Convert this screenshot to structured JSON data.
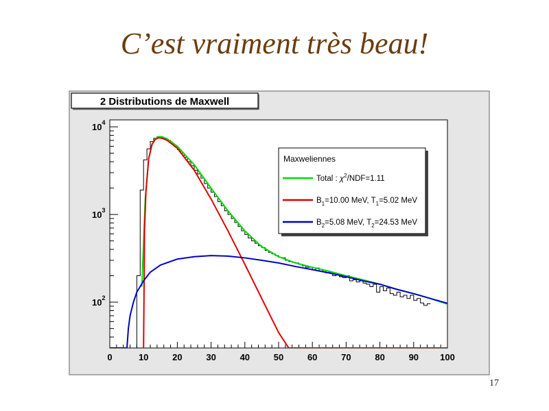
{
  "slide": {
    "title": "C’est vraiment très beau!",
    "page_number": "17"
  },
  "chart_data": {
    "type": "line",
    "title": "2 Distributions de Maxwell",
    "xlim": [
      0,
      100
    ],
    "ylim": [
      30,
      12000
    ],
    "yscale": "log",
    "x_ticks": [
      0,
      10,
      20,
      30,
      40,
      50,
      60,
      70,
      80,
      90,
      100
    ],
    "x_tick_labels": [
      "0",
      "10",
      "20",
      "30",
      "40",
      "50",
      "60",
      "70",
      "80",
      "90",
      "100"
    ],
    "y_ticks": [
      {
        "value": 100,
        "base": "10",
        "exp": "2"
      },
      {
        "value": 1000,
        "base": "10",
        "exp": "3"
      },
      {
        "value": 10000,
        "base": "10",
        "exp": "4"
      }
    ],
    "grid": false,
    "legend": {
      "title": "Maxweliennes",
      "placement": "top-right",
      "entries": [
        {
          "series": "total",
          "sym": "χ",
          "sup": "2",
          "post": "/NDF=1.11",
          "pre": "Total : "
        },
        {
          "series": "b1",
          "pre": "B",
          "sub1": "1",
          "mid": "=10.00 MeV, T",
          "sub2": "1",
          "post": "=5.02 MeV"
        },
        {
          "series": "b2",
          "pre": "B",
          "sub1": "2",
          "mid": "=5.08 MeV, T",
          "sub2": "2",
          "post": "=24.53 MeV"
        }
      ]
    },
    "series": [
      {
        "id": "histogram",
        "color": "#000000",
        "bin_width": 1,
        "bin_edges_start": 4,
        "values": [
          30,
          30,
          30,
          30,
          200,
          1900,
          4200,
          5600,
          6800,
          7400,
          7700,
          7600,
          7300,
          7000,
          6500,
          6000,
          5500,
          5000,
          4500,
          4000,
          3600,
          3200,
          2900,
          2600,
          2250,
          2000,
          1800,
          1600,
          1400,
          1260,
          1100,
          1000,
          900,
          810,
          730,
          650,
          590,
          540,
          500,
          470,
          440,
          420,
          390,
          370,
          355,
          340,
          325,
          320,
          300,
          290,
          285,
          280,
          270,
          260,
          250,
          250,
          235,
          245,
          225,
          230,
          215,
          220,
          200,
          210,
          195,
          190,
          200,
          175,
          180,
          170,
          175,
          165,
          160,
          150,
          160,
          130,
          150,
          135,
          145,
          125,
          120,
          130,
          115,
          120,
          110,
          120,
          105,
          110,
          98,
          92,
          96
        ]
      },
      {
        "id": "total",
        "color": "#00dd00",
        "x": [
          9.5,
          10.5,
          11.5,
          12.5,
          13.5,
          14.5,
          15.5,
          17,
          20,
          25,
          30,
          35,
          40,
          45,
          50,
          55,
          60,
          65,
          70,
          75,
          80,
          85,
          90,
          95,
          100
        ],
        "y": [
          150,
          1500,
          4300,
          6300,
          7300,
          7700,
          7700,
          7300,
          6000,
          3700,
          2000,
          1100,
          650,
          430,
          330,
          280,
          250,
          225,
          200,
          180,
          160,
          140,
          125,
          110,
          95
        ]
      },
      {
        "id": "b1",
        "color": "#e00000",
        "x": [
          10,
          10.3,
          10.7,
          11.5,
          12.5,
          13.5,
          14.5,
          15.5,
          17,
          20,
          25,
          30,
          35,
          40,
          45,
          50,
          53,
          54,
          60,
          70,
          80,
          90,
          100
        ],
        "y": [
          30,
          700,
          1800,
          4300,
          6300,
          7200,
          7500,
          7400,
          7000,
          5700,
          3200,
          1500,
          650,
          270,
          110,
          45,
          30,
          30,
          30,
          30,
          30,
          30,
          30
        ]
      },
      {
        "id": "b2",
        "color": "#0000cc",
        "x": [
          0,
          5.08,
          5.5,
          6,
          7,
          8,
          10,
          12,
          15,
          20,
          25,
          30,
          35,
          40,
          45,
          50,
          55,
          60,
          65,
          70,
          75,
          80,
          85,
          90,
          95,
          100
        ],
        "y": [
          30,
          30,
          50,
          70,
          100,
          130,
          175,
          220,
          265,
          310,
          330,
          340,
          335,
          320,
          300,
          280,
          255,
          235,
          215,
          195,
          175,
          160,
          140,
          125,
          110,
          97
        ]
      }
    ]
  }
}
